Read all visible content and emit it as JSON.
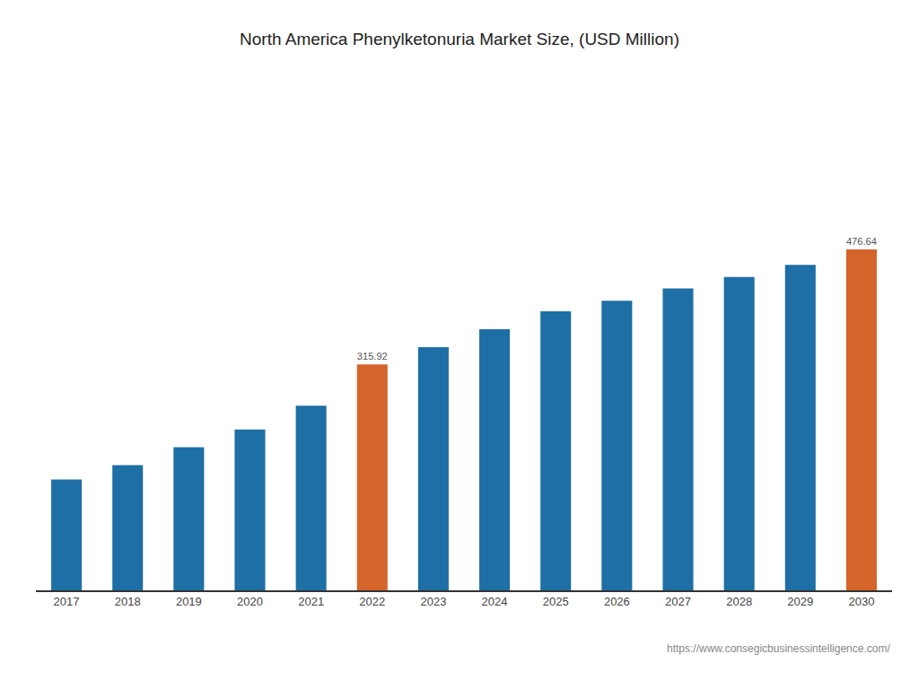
{
  "chart_data": {
    "type": "bar",
    "title": "North America Phenylketonuria Market Size, (USD Million)",
    "categories": [
      "2017",
      "2018",
      "2019",
      "2020",
      "2021",
      "2022",
      "2023",
      "2024",
      "2025",
      "2026",
      "2027",
      "2028",
      "2029",
      "2030"
    ],
    "values": [
      155,
      175,
      200,
      225,
      258,
      315.92,
      340,
      365,
      390,
      405,
      422,
      438,
      455,
      476.64
    ],
    "colors": [
      "#1e6fa5",
      "#1e6fa5",
      "#1e6fa5",
      "#1e6fa5",
      "#1e6fa5",
      "#d4642a",
      "#1e6fa5",
      "#1e6fa5",
      "#1e6fa5",
      "#1e6fa5",
      "#1e6fa5",
      "#1e6fa5",
      "#1e6fa5",
      "#d4642a"
    ],
    "data_labels": true,
    "value_labels": [
      null,
      null,
      null,
      null,
      null,
      "315.92",
      null,
      null,
      null,
      null,
      null,
      null,
      null,
      "476.64"
    ],
    "ylim": [
      0,
      700
    ],
    "tick_labels": "x",
    "grid": false,
    "annotations": [
      "https://www.consegicbusinessintelligence.com/"
    ]
  }
}
